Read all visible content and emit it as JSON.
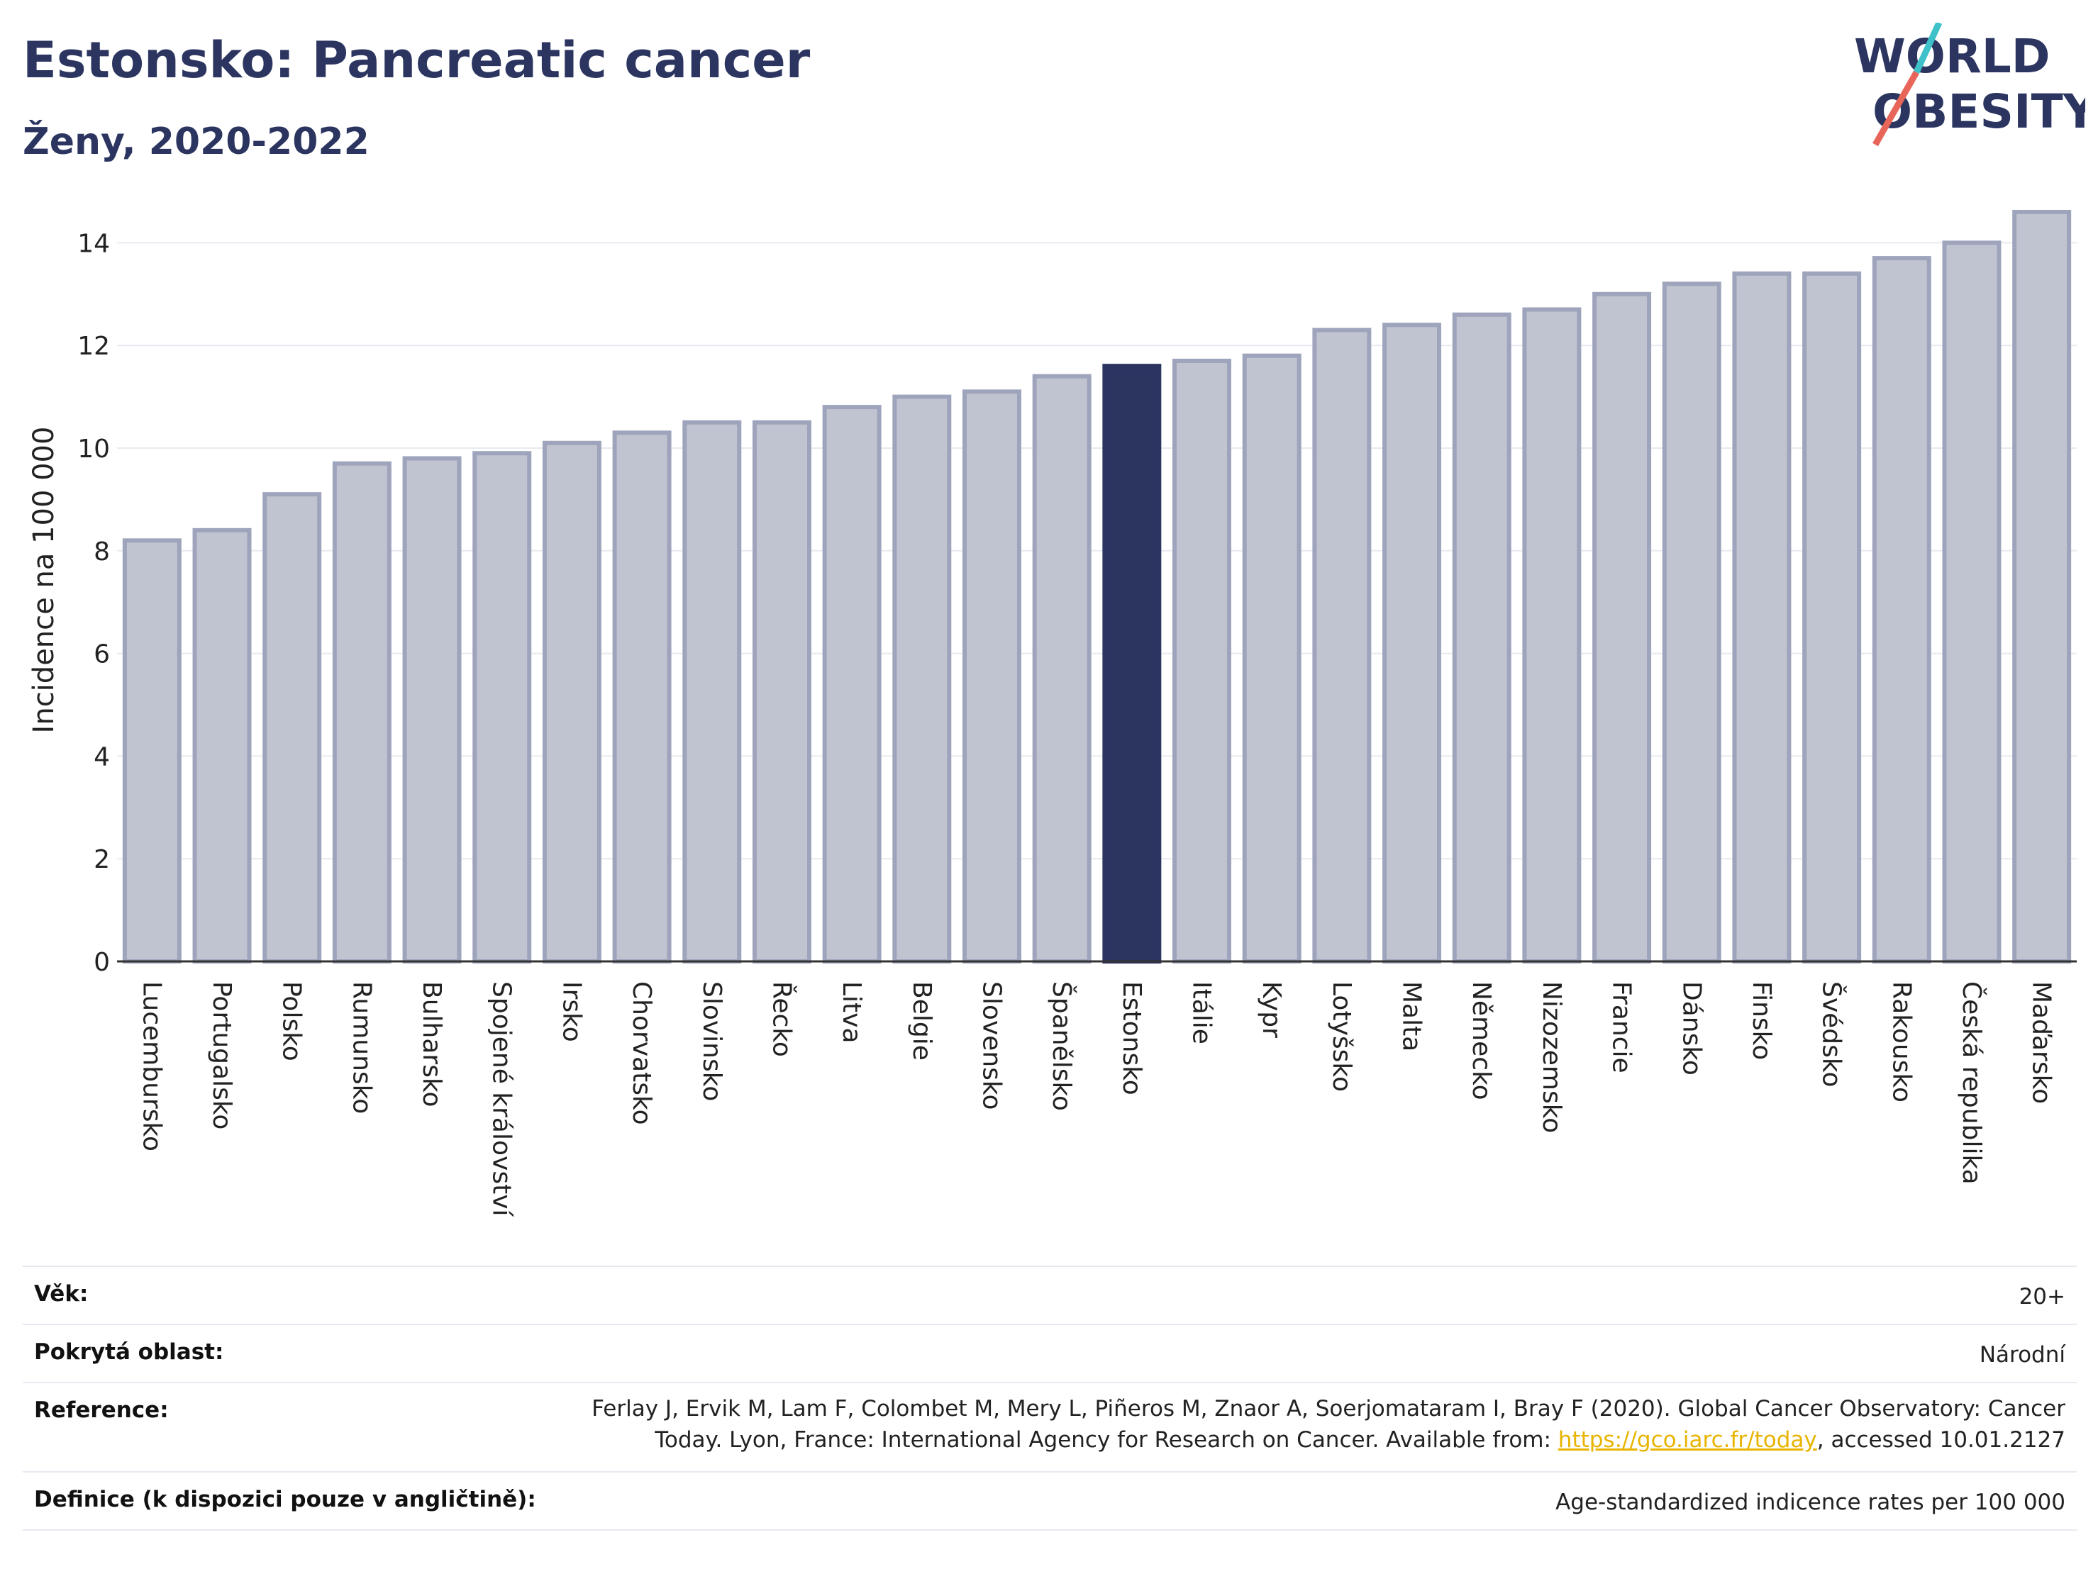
{
  "header": {
    "title": "Estonsko: Pancreatic cancer",
    "subtitle": "Ženy, 2020-2022"
  },
  "logo": {
    "line1": "WORLD",
    "line2": "OBESITY",
    "accent_colors": [
      "#3fc1c9",
      "#e8655a"
    ]
  },
  "chart_data": {
    "type": "bar",
    "ylabel": "Incidence na 100 000",
    "ylim": [
      0,
      15
    ],
    "yticks": [
      0,
      2,
      4,
      6,
      8,
      10,
      12,
      14
    ],
    "grid": true,
    "categories": [
      "Lucembursko",
      "Portugalsko",
      "Polsko",
      "Rumunsko",
      "Bulharsko",
      "Spojené království",
      "Irsko",
      "Chorvatsko",
      "Slovinsko",
      "Řecko",
      "Litva",
      "Belgie",
      "Slovensko",
      "Španělsko",
      "Estonsko",
      "Itálie",
      "Kypr",
      "Lotyšsko",
      "Malta",
      "Německo",
      "Nizozemsko",
      "Francie",
      "Dánsko",
      "Finsko",
      "Švédsko",
      "Rakousko",
      "Česká republika",
      "Maďarsko"
    ],
    "values": [
      8.2,
      8.4,
      9.1,
      9.7,
      9.8,
      9.9,
      10.1,
      10.3,
      10.5,
      10.5,
      10.8,
      11.0,
      11.1,
      11.4,
      11.6,
      11.7,
      11.8,
      12.3,
      12.4,
      12.6,
      12.7,
      13.0,
      13.2,
      13.4,
      13.4,
      13.7,
      14.0,
      14.6
    ],
    "highlight": "Estonsko",
    "colors": {
      "bar": "#c0c3d0",
      "bar_border": "#9ea4bb",
      "highlight": "#2b3560",
      "grid": "#e8eaf0",
      "axis": "#333333"
    }
  },
  "info": [
    {
      "key": "Věk:",
      "value": "20+"
    },
    {
      "key": "Pokrytá oblast:",
      "value": "Národní"
    },
    {
      "key": "Reference:",
      "value_pre": "Ferlay J, Ervik M, Lam F, Colombet M, Mery L, Piñeros M, Znaor A, Soerjomataram I, Bray F (2020). Global Cancer Observatory: Cancer Today. Lyon, France: International Agency for Research on Cancer. Available from: ",
      "link": "https://gco.iarc.fr/today",
      "value_post": ", accessed 10.01.2127"
    },
    {
      "key": "Definice (k dispozici pouze v angličtině):",
      "value": "Age-standardized indicence rates per 100 000"
    }
  ]
}
